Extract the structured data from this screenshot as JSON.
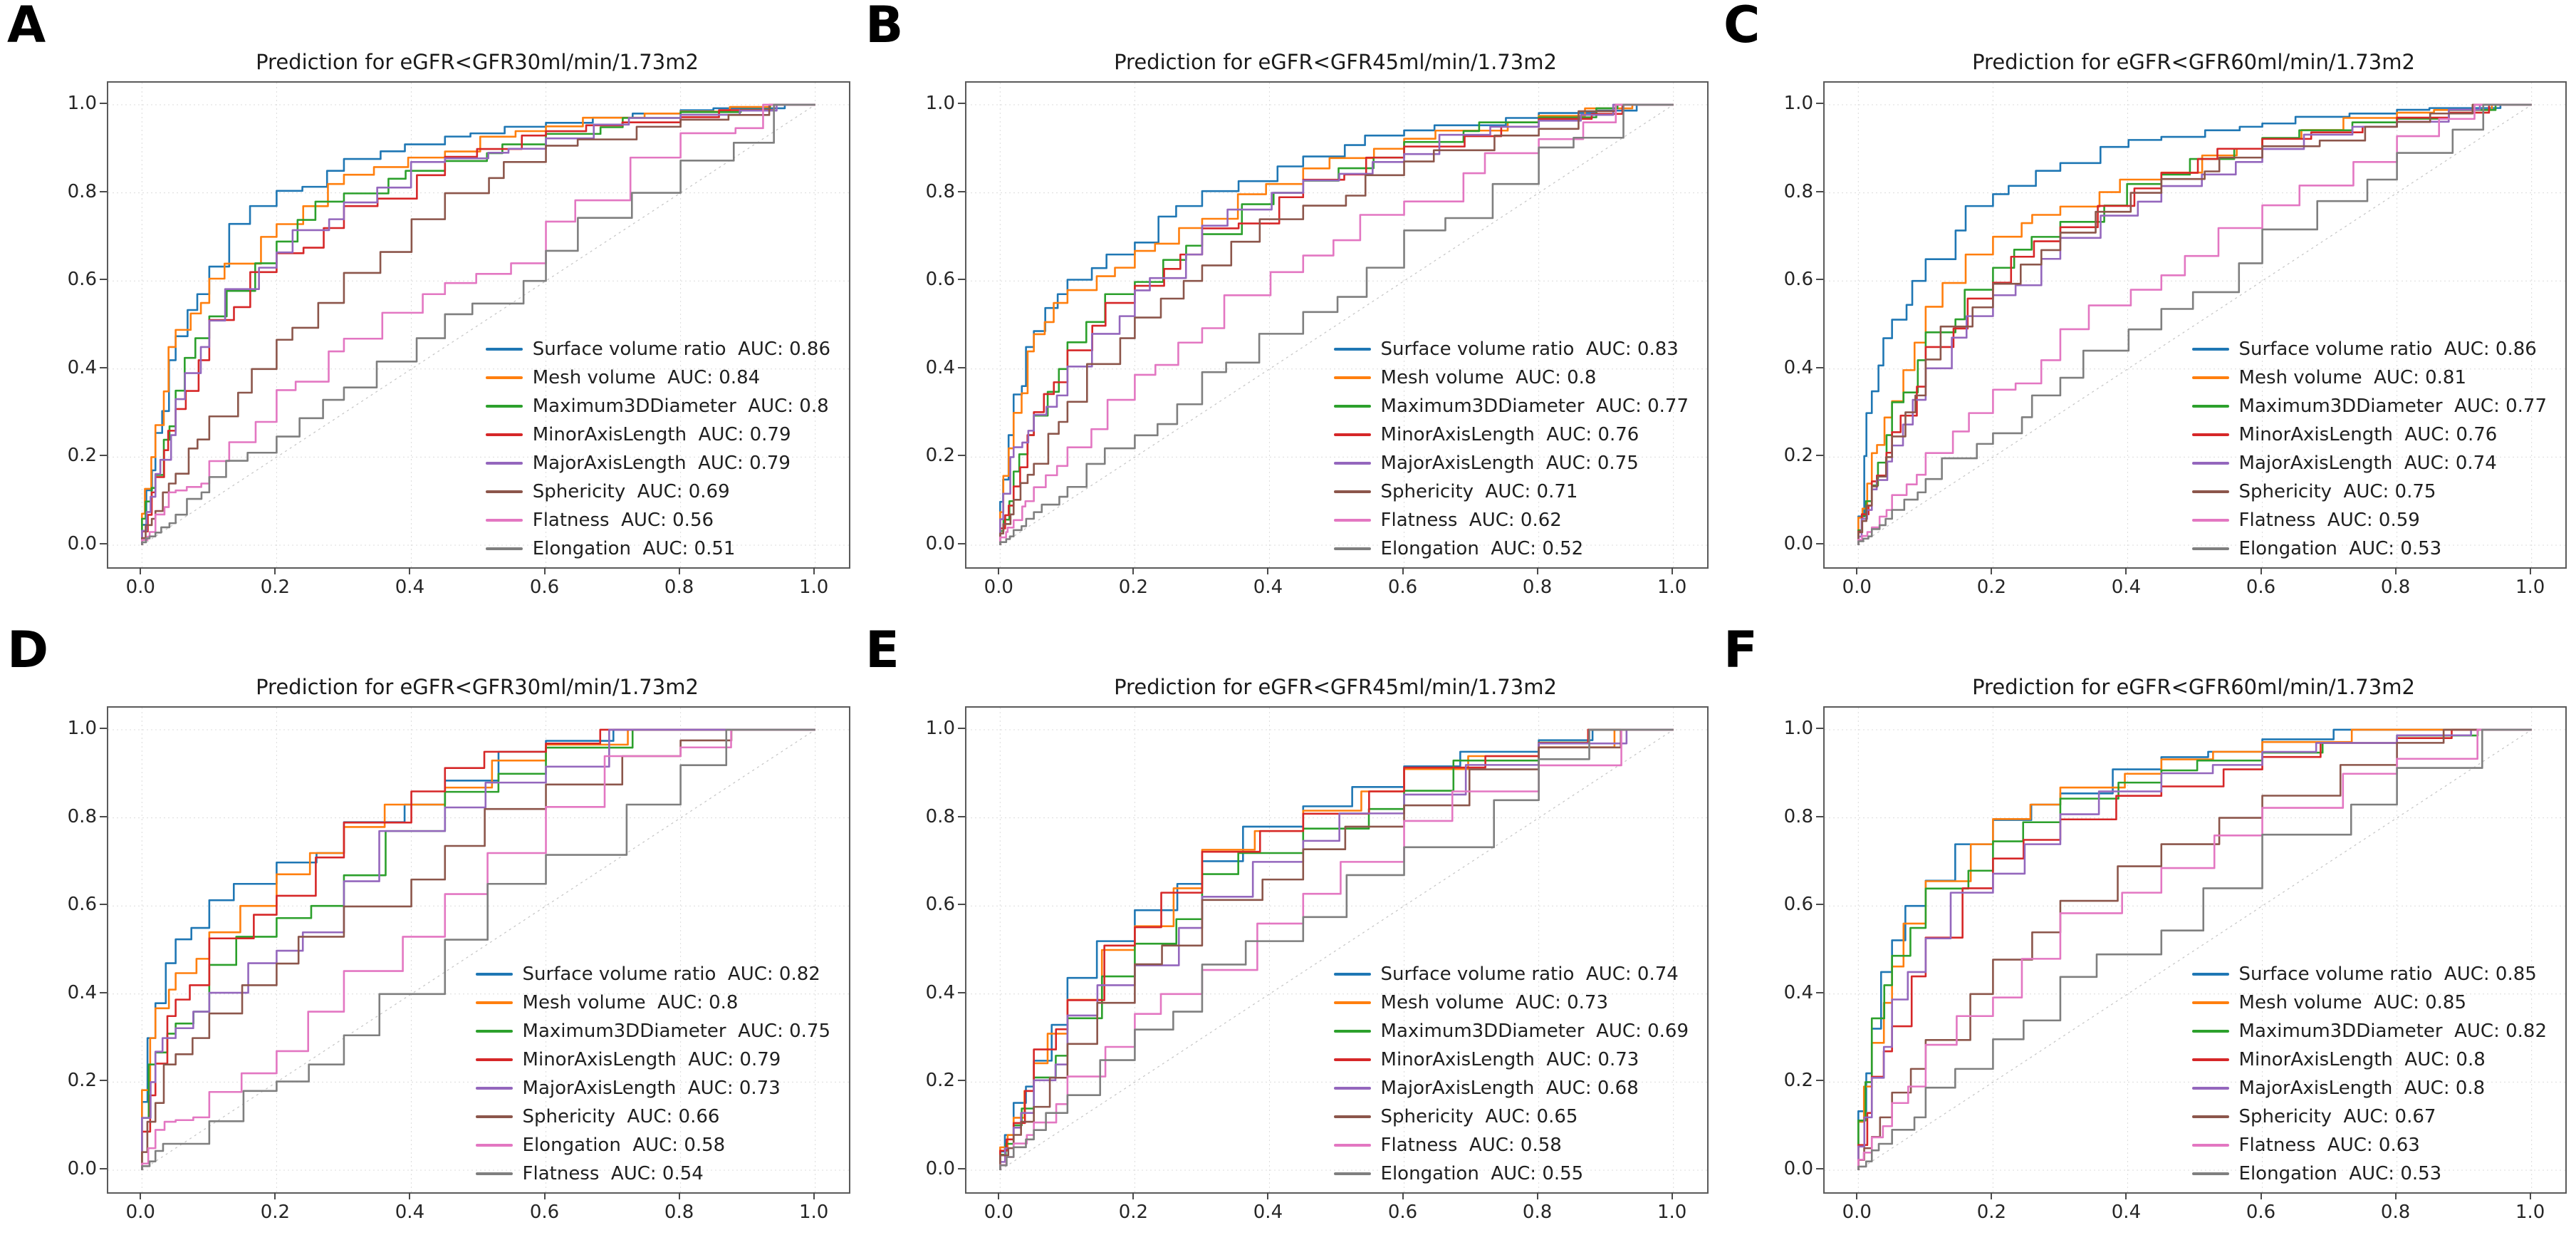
{
  "figure": {
    "background": "#ffffff",
    "auc_label": "AUC:",
    "palette": {
      "blue": "#1f77b4",
      "orange": "#ff7f0e",
      "green": "#2ca02c",
      "red": "#d62728",
      "purple": "#9467bd",
      "brown": "#8c564b",
      "pink": "#e377c2",
      "gray": "#7f7f7f",
      "diagonal": "#c4c4c4",
      "grid": "#dcdcdc",
      "spine": "#5a5a5a",
      "text": "#262626"
    }
  },
  "axes": {
    "tick_labels": [
      "0.0",
      "0.2",
      "0.4",
      "0.6",
      "0.8",
      "1.0"
    ],
    "tick_values": [
      0,
      0.2,
      0.4,
      0.6,
      0.8,
      1.0
    ],
    "xlim": [
      0,
      1
    ],
    "ylim": [
      0,
      1
    ],
    "grid": true,
    "diagonal_reference": true,
    "legend_position": "lower right"
  },
  "chart_data": [
    {
      "panel": "A",
      "type": "line",
      "subtype": "roc-step",
      "title": "Prediction for eGFR<GFR30ml/min/1.73m2",
      "x_anchors": [
        0,
        0.02,
        0.05,
        0.1,
        0.2,
        0.3,
        0.45,
        0.6,
        0.8,
        1.0
      ],
      "series": [
        {
          "name": "Surface volume ratio",
          "auc": "0.86",
          "color": "#1f77b4",
          "y": [
            0,
            0.17,
            0.42,
            0.57,
            0.77,
            0.85,
            0.91,
            0.95,
            0.98,
            1
          ]
        },
        {
          "name": "Mesh volume",
          "auc": "0.84",
          "color": "#ff7f0e",
          "y": [
            0,
            0.2,
            0.45,
            0.55,
            0.7,
            0.82,
            0.88,
            0.94,
            0.98,
            1
          ]
        },
        {
          "name": "Maximum3DDiameter",
          "auc": "0.8",
          "color": "#2ca02c",
          "y": [
            0,
            0.13,
            0.27,
            0.47,
            0.64,
            0.78,
            0.85,
            0.91,
            0.97,
            1
          ]
        },
        {
          "name": "MinorAxisLength",
          "auc": "0.79",
          "color": "#d62728",
          "y": [
            0,
            0.12,
            0.26,
            0.42,
            0.62,
            0.72,
            0.84,
            0.93,
            0.96,
            1
          ]
        },
        {
          "name": "MajorAxisLength",
          "auc": "0.79",
          "color": "#9467bd",
          "y": [
            0,
            0.11,
            0.25,
            0.45,
            0.63,
            0.74,
            0.87,
            0.9,
            0.97,
            1
          ]
        },
        {
          "name": "Sphericity",
          "auc": "0.69",
          "color": "#8c564b",
          "y": [
            0,
            0.06,
            0.14,
            0.24,
            0.4,
            0.55,
            0.74,
            0.87,
            0.95,
            1
          ]
        },
        {
          "name": "Flatness",
          "auc": "0.56",
          "color": "#e377c2",
          "y": [
            0,
            0.03,
            0.12,
            0.14,
            0.28,
            0.44,
            0.57,
            0.64,
            0.88,
            1
          ]
        },
        {
          "name": "Elongation",
          "auc": "0.51",
          "color": "#7f7f7f",
          "y": [
            0,
            0.02,
            0.05,
            0.12,
            0.21,
            0.33,
            0.47,
            0.6,
            0.8,
            1
          ]
        }
      ]
    },
    {
      "panel": "B",
      "type": "line",
      "subtype": "roc-step",
      "title": "Prediction for eGFR<GFR45ml/min/1.73m2",
      "x_anchors": [
        0,
        0.02,
        0.05,
        0.1,
        0.2,
        0.3,
        0.45,
        0.6,
        0.8,
        1.0
      ],
      "series": [
        {
          "name": "Surface volume ratio",
          "auc": "0.83",
          "color": "#1f77b4",
          "y": [
            0,
            0.25,
            0.45,
            0.57,
            0.66,
            0.77,
            0.86,
            0.93,
            0.97,
            1
          ]
        },
        {
          "name": "Mesh volume",
          "auc": "0.8",
          "color": "#ff7f0e",
          "y": [
            0,
            0.22,
            0.44,
            0.55,
            0.63,
            0.72,
            0.82,
            0.9,
            0.96,
            1
          ]
        },
        {
          "name": "Maximum3DDiameter",
          "auc": "0.77",
          "color": "#2ca02c",
          "y": [
            0,
            0.1,
            0.25,
            0.4,
            0.57,
            0.68,
            0.8,
            0.88,
            0.96,
            1
          ]
        },
        {
          "name": "MinorAxisLength",
          "auc": "0.76",
          "color": "#d62728",
          "y": [
            0,
            0.09,
            0.25,
            0.37,
            0.55,
            0.66,
            0.79,
            0.88,
            0.95,
            1
          ]
        },
        {
          "name": "MajorAxisLength",
          "auc": "0.75",
          "color": "#9467bd",
          "y": [
            0,
            0.2,
            0.26,
            0.34,
            0.52,
            0.66,
            0.8,
            0.87,
            0.95,
            1
          ]
        },
        {
          "name": "Sphericity",
          "auc": "0.71",
          "color": "#8c564b",
          "y": [
            0,
            0.07,
            0.16,
            0.28,
            0.47,
            0.6,
            0.74,
            0.84,
            0.93,
            1
          ]
        },
        {
          "name": "Flatness",
          "auc": "0.62",
          "color": "#e377c2",
          "y": [
            0,
            0.04,
            0.1,
            0.18,
            0.33,
            0.46,
            0.62,
            0.75,
            0.89,
            1
          ]
        },
        {
          "name": "Elongation",
          "auc": "0.52",
          "color": "#7f7f7f",
          "y": [
            0,
            0.02,
            0.06,
            0.11,
            0.22,
            0.32,
            0.48,
            0.63,
            0.82,
            1
          ]
        }
      ]
    },
    {
      "panel": "C",
      "type": "line",
      "subtype": "roc-step",
      "title": "Prediction for eGFR<GFR60ml/min/1.73m2",
      "x_anchors": [
        0,
        0.02,
        0.05,
        0.1,
        0.2,
        0.3,
        0.45,
        0.6,
        0.8,
        1.0
      ],
      "series": [
        {
          "name": "Surface volume ratio",
          "auc": "0.86",
          "color": "#1f77b4",
          "y": [
            0,
            0.3,
            0.47,
            0.6,
            0.77,
            0.85,
            0.92,
            0.95,
            0.98,
            1
          ]
        },
        {
          "name": "Mesh volume",
          "auc": "0.81",
          "color": "#ff7f0e",
          "y": [
            0,
            0.14,
            0.29,
            0.46,
            0.66,
            0.75,
            0.83,
            0.9,
            0.97,
            1
          ]
        },
        {
          "name": "Maximum3DDiameter",
          "auc": "0.77",
          "color": "#2ca02c",
          "y": [
            0,
            0.1,
            0.25,
            0.42,
            0.58,
            0.7,
            0.82,
            0.9,
            0.96,
            1
          ]
        },
        {
          "name": "MinorAxisLength",
          "auc": "0.76",
          "color": "#d62728",
          "y": [
            0,
            0.09,
            0.21,
            0.36,
            0.56,
            0.69,
            0.81,
            0.9,
            0.95,
            1
          ]
        },
        {
          "name": "MajorAxisLength",
          "auc": "0.74",
          "color": "#9467bd",
          "y": [
            0,
            0.08,
            0.19,
            0.33,
            0.52,
            0.65,
            0.78,
            0.87,
            0.95,
            1
          ]
        },
        {
          "name": "Sphericity",
          "auc": "0.75",
          "color": "#8c564b",
          "y": [
            0,
            0.09,
            0.2,
            0.34,
            0.54,
            0.67,
            0.8,
            0.88,
            0.95,
            1
          ]
        },
        {
          "name": "Flatness",
          "auc": "0.59",
          "color": "#e377c2",
          "y": [
            0,
            0.03,
            0.08,
            0.16,
            0.3,
            0.42,
            0.58,
            0.72,
            0.87,
            1
          ]
        },
        {
          "name": "Elongation",
          "auc": "0.53",
          "color": "#7f7f7f",
          "y": [
            0,
            0.02,
            0.06,
            0.12,
            0.23,
            0.34,
            0.49,
            0.64,
            0.83,
            1
          ]
        }
      ]
    },
    {
      "panel": "D",
      "type": "line",
      "subtype": "roc-step",
      "title": "Prediction for eGFR<GFR30ml/min/1.73m2",
      "x_anchors": [
        0,
        0.02,
        0.05,
        0.1,
        0.2,
        0.3,
        0.45,
        0.6,
        0.8,
        1.0
      ],
      "series": [
        {
          "name": "Surface volume ratio",
          "auc": "0.82",
          "color": "#1f77b4",
          "y": [
            0,
            0.3,
            0.47,
            0.55,
            0.65,
            0.72,
            0.83,
            0.95,
            1,
            1
          ]
        },
        {
          "name": "Mesh volume",
          "auc": "0.8",
          "color": "#ff7f0e",
          "y": [
            0,
            0.3,
            0.41,
            0.48,
            0.6,
            0.72,
            0.83,
            0.93,
            1,
            1
          ]
        },
        {
          "name": "Maximum3DDiameter",
          "auc": "0.75",
          "color": "#2ca02c",
          "y": [
            0,
            0.24,
            0.31,
            0.36,
            0.53,
            0.6,
            0.77,
            0.9,
            1,
            1
          ]
        },
        {
          "name": "MinorAxisLength",
          "auc": "0.79",
          "color": "#d62728",
          "y": [
            0,
            0.17,
            0.35,
            0.42,
            0.58,
            0.71,
            0.86,
            0.95,
            1,
            1
          ]
        },
        {
          "name": "MajorAxisLength",
          "auc": "0.73",
          "color": "#9467bd",
          "y": [
            0,
            0.2,
            0.3,
            0.36,
            0.47,
            0.54,
            0.77,
            0.88,
            1,
            1
          ]
        },
        {
          "name": "Sphericity",
          "auc": "0.66",
          "color": "#8c564b",
          "y": [
            0,
            0.11,
            0.24,
            0.3,
            0.42,
            0.53,
            0.66,
            0.82,
            0.94,
            1
          ]
        },
        {
          "name": "Elongation",
          "auc": "0.58",
          "color": "#e377c2",
          "y": [
            0,
            0.05,
            0.11,
            0.12,
            0.22,
            0.36,
            0.53,
            0.72,
            0.94,
            1
          ]
        },
        {
          "name": "Flatness",
          "auc": "0.54",
          "color": "#7f7f7f",
          "y": [
            0,
            0.02,
            0.06,
            0.06,
            0.18,
            0.24,
            0.4,
            0.65,
            0.83,
            1
          ]
        }
      ]
    },
    {
      "panel": "E",
      "type": "line",
      "subtype": "roc-step",
      "title": "Prediction for eGFR<GFR45ml/min/1.73m2",
      "x_anchors": [
        0,
        0.02,
        0.05,
        0.1,
        0.2,
        0.3,
        0.45,
        0.6,
        0.8,
        1.0
      ],
      "series": [
        {
          "name": "Surface volume ratio",
          "auc": "0.74",
          "color": "#1f77b4",
          "y": [
            0,
            0.08,
            0.19,
            0.33,
            0.52,
            0.65,
            0.78,
            0.87,
            0.95,
            1
          ]
        },
        {
          "name": "Mesh volume",
          "auc": "0.73",
          "color": "#ff7f0e",
          "y": [
            0,
            0.08,
            0.18,
            0.31,
            0.5,
            0.64,
            0.77,
            0.86,
            0.94,
            1
          ]
        },
        {
          "name": "Maximum3DDiameter",
          "auc": "0.69",
          "color": "#2ca02c",
          "y": [
            0,
            0.06,
            0.14,
            0.26,
            0.44,
            0.57,
            0.72,
            0.82,
            0.93,
            1
          ]
        },
        {
          "name": "MinorAxisLength",
          "auc": "0.73",
          "color": "#d62728",
          "y": [
            0,
            0.07,
            0.18,
            0.32,
            0.51,
            0.63,
            0.77,
            0.86,
            0.94,
            1
          ]
        },
        {
          "name": "MajorAxisLength",
          "auc": "0.68",
          "color": "#9467bd",
          "y": [
            0,
            0.05,
            0.13,
            0.24,
            0.42,
            0.55,
            0.7,
            0.81,
            0.92,
            1
          ]
        },
        {
          "name": "Sphericity",
          "auc": "0.65",
          "color": "#8c564b",
          "y": [
            0,
            0.05,
            0.11,
            0.21,
            0.38,
            0.51,
            0.66,
            0.78,
            0.91,
            1
          ]
        },
        {
          "name": "Flatness",
          "auc": "0.58",
          "color": "#e377c2",
          "y": [
            0,
            0.03,
            0.08,
            0.15,
            0.28,
            0.4,
            0.56,
            0.7,
            0.86,
            1
          ]
        },
        {
          "name": "Elongation",
          "auc": "0.55",
          "color": "#7f7f7f",
          "y": [
            0,
            0.03,
            0.07,
            0.13,
            0.25,
            0.36,
            0.52,
            0.67,
            0.84,
            1
          ]
        }
      ]
    },
    {
      "panel": "F",
      "type": "line",
      "subtype": "roc-step",
      "title": "Prediction for eGFR<GFR60ml/min/1.73m2",
      "x_anchors": [
        0,
        0.02,
        0.05,
        0.1,
        0.2,
        0.3,
        0.45,
        0.6,
        0.8,
        1.0
      ],
      "series": [
        {
          "name": "Surface volume ratio",
          "auc": "0.85",
          "color": "#1f77b4",
          "y": [
            0,
            0.22,
            0.45,
            0.6,
            0.74,
            0.83,
            0.91,
            0.95,
            1,
            1
          ]
        },
        {
          "name": "Mesh volume",
          "auc": "0.85",
          "color": "#ff7f0e",
          "y": [
            0,
            0.19,
            0.38,
            0.56,
            0.74,
            0.83,
            0.9,
            0.95,
            1,
            1
          ]
        },
        {
          "name": "Maximum3DDiameter",
          "auc": "0.82",
          "color": "#2ca02c",
          "y": [
            0,
            0.2,
            0.42,
            0.55,
            0.68,
            0.79,
            0.88,
            0.93,
            0.97,
            1
          ]
        },
        {
          "name": "MinorAxisLength",
          "auc": "0.8",
          "color": "#d62728",
          "y": [
            0,
            0.13,
            0.27,
            0.44,
            0.64,
            0.75,
            0.85,
            0.91,
            0.97,
            1
          ]
        },
        {
          "name": "MajorAxisLength",
          "auc": "0.8",
          "color": "#9467bd",
          "y": [
            0,
            0.12,
            0.28,
            0.45,
            0.63,
            0.74,
            0.86,
            0.92,
            0.97,
            1
          ]
        },
        {
          "name": "Sphericity",
          "auc": "0.67",
          "color": "#8c564b",
          "y": [
            0,
            0.05,
            0.12,
            0.23,
            0.4,
            0.54,
            0.69,
            0.8,
            0.92,
            1
          ]
        },
        {
          "name": "Flatness",
          "auc": "0.63",
          "color": "#e377c2",
          "y": [
            0,
            0.04,
            0.1,
            0.19,
            0.35,
            0.48,
            0.63,
            0.76,
            0.9,
            1
          ]
        },
        {
          "name": "Elongation",
          "auc": "0.53",
          "color": "#7f7f7f",
          "y": [
            0,
            0.02,
            0.06,
            0.12,
            0.23,
            0.34,
            0.49,
            0.64,
            0.83,
            1
          ]
        }
      ]
    }
  ]
}
